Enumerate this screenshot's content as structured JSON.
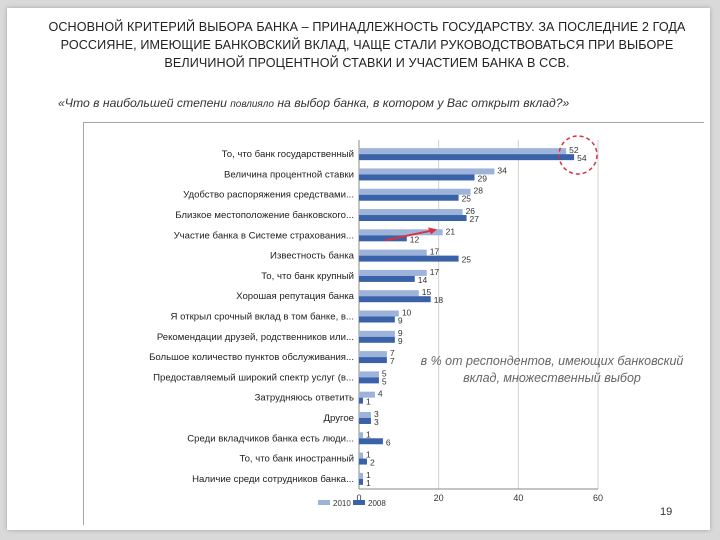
{
  "slide": {
    "title": "ОСНОВНОЙ КРИТЕРИЙ ВЫБОРА БАНКА – ПРИНАДЛЕЖНОСТЬ ГОСУДАРСТВУ. ЗА ПОСЛЕДНИЕ 2 ГОДА РОССИЯНЕ, ИМЕЮЩИЕ БАНКОВСКИЙ ВКЛАД, ЧАЩЕ СТАЛИ РУКОВОДСТВОВАТЬСЯ ПРИ ВЫБОРЕ ВЕЛИЧИНОЙ ПРОЦЕНТНОЙ СТАВКИ И УЧАСТИЕМ БАНКА В ССВ.",
    "subtitle_part1": "«Что в наибольшей степени ",
    "subtitle_part2": "повлияло",
    "subtitle_part3": " на выбор банка, в котором у Вас открыт вклад?»",
    "note": "в % от респондентов, имеющих банковский вклад, множественный выбор",
    "page_number": "19",
    "colors": {
      "series2010": "#9db3d9",
      "series2008": "#3a62a8",
      "highlight_circle": "#d9333f",
      "arrow": "#d9333f"
    }
  },
  "chart_data": {
    "type": "bar",
    "orientation": "horizontal",
    "categories": [
      "То, что банк государственный",
      "Величина процентной ставки",
      "Удобство распоряжения средствами...",
      "Близкое местоположение банковского...",
      "Участие банка в Системе страхования...",
      "Известность банка",
      "То, что банк крупный",
      "Хорошая репутация банка",
      "Я открыл срочный вклад в том банке, в...",
      "Рекомендации друзей, родственников или...",
      "Большое количество пунктов обслуживания...",
      "Предоставляемый широкий спектр услуг (в...",
      "Затрудняюсь ответить",
      "Другое",
      "Среди вкладчиков банка есть люди...",
      "То, что банк иностранный",
      "Наличие среди сотрудников банка..."
    ],
    "series": [
      {
        "name": "2010",
        "values": [
          52,
          34,
          28,
          26,
          21,
          17,
          17,
          15,
          10,
          9,
          7,
          5,
          4,
          3,
          1,
          1,
          1
        ]
      },
      {
        "name": "2008",
        "values": [
          54,
          29,
          25,
          27,
          12,
          25,
          14,
          18,
          9,
          9,
          7,
          5,
          1,
          3,
          6,
          2,
          1
        ]
      }
    ],
    "label_texts_2010": [
      "52",
      "34",
      "28",
      "26",
      "21",
      "17",
      "17",
      "15",
      "10",
      "9",
      "7",
      "5",
      "4",
      "3",
      "1",
      "1",
      "1"
    ],
    "label_texts_2008": [
      "54",
      "29",
      "25",
      "27",
      "12",
      "25",
      "14",
      "18",
      "9",
      "9",
      "7",
      "5",
      "1",
      "3",
      "6",
      "2",
      "1"
    ],
    "xlim": [
      0,
      60
    ],
    "xticks": [
      "0",
      "20",
      "40",
      "60"
    ],
    "legend": [
      "2010",
      "2008"
    ],
    "legend_position": "bottom-left",
    "grid": true
  }
}
